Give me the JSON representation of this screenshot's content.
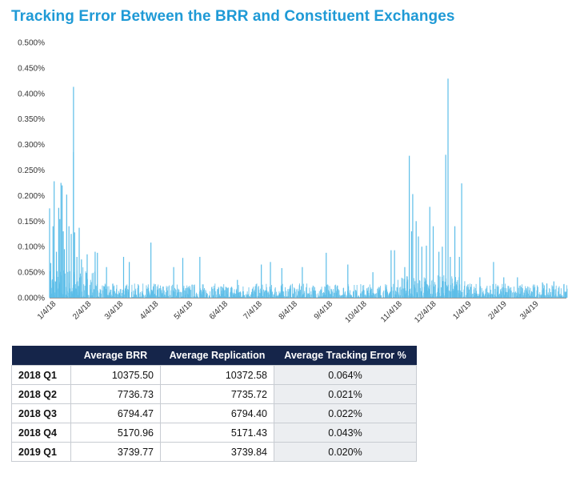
{
  "title": "Tracking Error Between the BRR and Constituent Exchanges",
  "chart_data": {
    "type": "bar",
    "title": "Tracking Error Between the BRR and Constituent Exchanges",
    "xlabel": "",
    "ylabel": "",
    "ylim": [
      0,
      0.005
    ],
    "ytick_labels": [
      "0.000%",
      "0.050%",
      "0.100%",
      "0.150%",
      "0.200%",
      "0.250%",
      "0.300%",
      "0.350%",
      "0.400%",
      "0.450%",
      "0.500%"
    ],
    "xtick_labels": [
      "1/4/18",
      "2/4/18",
      "3/4/18",
      "4/4/18",
      "5/4/18",
      "6/4/18",
      "7/4/18",
      "8/4/18",
      "9/4/18",
      "10/4/18",
      "11/4/18",
      "12/4/18",
      "1/4/19",
      "2/4/19",
      "3/4/19"
    ],
    "x_range": [
      "2018-01-01",
      "2019-03-31"
    ],
    "grid": false,
    "color": "#5bbde8",
    "spikes": [
      {
        "date": "2018-01-01",
        "value": 0.00175
      },
      {
        "date": "2018-01-02",
        "value": 0.00068
      },
      {
        "date": "2018-01-04",
        "value": 0.0014
      },
      {
        "date": "2018-01-05",
        "value": 0.00228
      },
      {
        "date": "2018-01-07",
        "value": 0.0009
      },
      {
        "date": "2018-01-09",
        "value": 0.00176
      },
      {
        "date": "2018-01-10",
        "value": 0.00154
      },
      {
        "date": "2018-01-11",
        "value": 0.00225
      },
      {
        "date": "2018-01-12",
        "value": 0.0022
      },
      {
        "date": "2018-01-13",
        "value": 0.0013
      },
      {
        "date": "2018-01-14",
        "value": 0.00095
      },
      {
        "date": "2018-01-16",
        "value": 0.00202
      },
      {
        "date": "2018-01-18",
        "value": 0.0014
      },
      {
        "date": "2018-01-20",
        "value": 0.00125
      },
      {
        "date": "2018-01-22",
        "value": 0.00413
      },
      {
        "date": "2018-01-22",
        "value": 0.00285
      },
      {
        "date": "2018-01-23",
        "value": 0.00128
      },
      {
        "date": "2018-01-25",
        "value": 0.0008
      },
      {
        "date": "2018-01-27",
        "value": 0.00137
      },
      {
        "date": "2018-01-29",
        "value": 0.00075
      },
      {
        "date": "2018-02-03",
        "value": 0.00085
      },
      {
        "date": "2018-02-10",
        "value": 0.0009
      },
      {
        "date": "2018-02-12",
        "value": 0.00088
      },
      {
        "date": "2018-02-20",
        "value": 0.0006
      },
      {
        "date": "2018-03-07",
        "value": 0.0008
      },
      {
        "date": "2018-03-12",
        "value": 0.0007
      },
      {
        "date": "2018-03-31",
        "value": 0.00108
      },
      {
        "date": "2018-04-20",
        "value": 0.0006
      },
      {
        "date": "2018-04-28",
        "value": 0.00078
      },
      {
        "date": "2018-05-13",
        "value": 0.0008
      },
      {
        "date": "2018-06-15",
        "value": 0.00035
      },
      {
        "date": "2018-07-06",
        "value": 0.00065
      },
      {
        "date": "2018-07-14",
        "value": 0.0007
      },
      {
        "date": "2018-07-24",
        "value": 0.00058
      },
      {
        "date": "2018-08-11",
        "value": 0.0006
      },
      {
        "date": "2018-09-01",
        "value": 0.00088
      },
      {
        "date": "2018-09-20",
        "value": 0.00065
      },
      {
        "date": "2018-10-12",
        "value": 0.0005
      },
      {
        "date": "2018-10-28",
        "value": 0.00093
      },
      {
        "date": "2018-10-31",
        "value": 0.00093
      },
      {
        "date": "2018-11-09",
        "value": 0.0006
      },
      {
        "date": "2018-11-13",
        "value": 0.00278
      },
      {
        "date": "2018-11-15",
        "value": 0.0013
      },
      {
        "date": "2018-11-16",
        "value": 0.00203
      },
      {
        "date": "2018-11-19",
        "value": 0.0015
      },
      {
        "date": "2018-11-21",
        "value": 0.0012
      },
      {
        "date": "2018-11-24",
        "value": 0.001
      },
      {
        "date": "2018-11-28",
        "value": 0.00102
      },
      {
        "date": "2018-12-01",
        "value": 0.00178
      },
      {
        "date": "2018-12-04",
        "value": 0.0014
      },
      {
        "date": "2018-12-09",
        "value": 0.0009
      },
      {
        "date": "2018-12-12",
        "value": 0.001
      },
      {
        "date": "2018-12-15",
        "value": 0.0028
      },
      {
        "date": "2018-12-17",
        "value": 0.00429
      },
      {
        "date": "2018-12-19",
        "value": 0.0008
      },
      {
        "date": "2018-12-23",
        "value": 0.0014
      },
      {
        "date": "2018-12-27",
        "value": 0.0008
      },
      {
        "date": "2018-12-29",
        "value": 0.00224
      },
      {
        "date": "2019-01-14",
        "value": 0.0004
      },
      {
        "date": "2019-01-26",
        "value": 0.0007
      },
      {
        "date": "2019-02-04",
        "value": 0.0004
      },
      {
        "date": "2019-02-16",
        "value": 0.0004
      },
      {
        "date": "2019-03-10",
        "value": 0.0003
      },
      {
        "date": "2019-03-20",
        "value": 0.00032
      }
    ]
  },
  "table": {
    "headers": [
      "",
      "Average BRR",
      "Average Replication",
      "Average Tracking Error %"
    ],
    "rows": [
      {
        "quarter": "2018 Q1",
        "brr": "10375.50",
        "replication": "10372.58",
        "error": "0.064%"
      },
      {
        "quarter": "2018 Q2",
        "brr": "7736.73",
        "replication": "7735.72",
        "error": "0.021%"
      },
      {
        "quarter": "2018 Q3",
        "brr": "6794.47",
        "replication": "6794.40",
        "error": "0.022%"
      },
      {
        "quarter": "2018 Q4",
        "brr": "5170.96",
        "replication": "5171.43",
        "error": "0.043%"
      },
      {
        "quarter": "2019 Q1",
        "brr": "3739.77",
        "replication": "3739.84",
        "error": "0.020%"
      }
    ]
  }
}
